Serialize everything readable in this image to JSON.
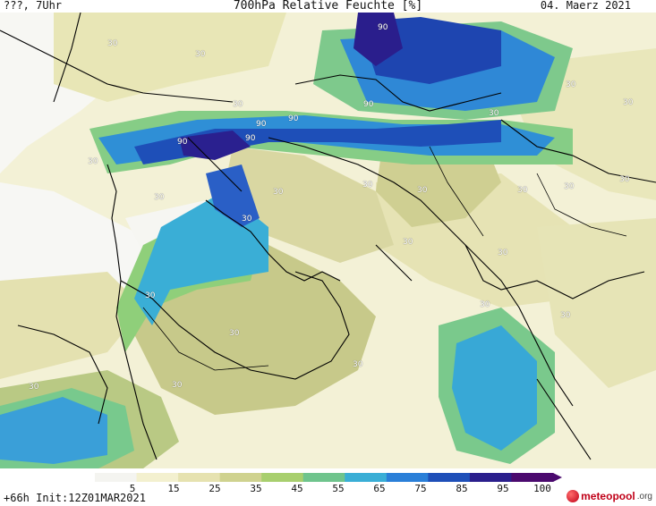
{
  "header": {
    "left": "???, 7Uhr",
    "title": "700hPa Relative Feuchte [%]",
    "date": "04. Maerz 2021"
  },
  "colorbar": {
    "ticks": [
      "5",
      "15",
      "25",
      "35",
      "45",
      "55",
      "65",
      "75",
      "85",
      "95",
      "100"
    ],
    "colors": [
      "#f4f4f0",
      "#f3f0cf",
      "#e6e2b0",
      "#cfd28f",
      "#a8cf6e",
      "#6fc48d",
      "#3aaed6",
      "#2a7fd8",
      "#1e4fb8",
      "#2a1e8c",
      "#4b0a6e"
    ]
  },
  "contour_labels": [
    {
      "text": "90"
    },
    {
      "text": "90"
    },
    {
      "text": "90"
    },
    {
      "text": "90"
    },
    {
      "text": "90"
    },
    {
      "text": "90"
    },
    {
      "text": "30"
    },
    {
      "text": "30"
    },
    {
      "text": "30"
    },
    {
      "text": "30"
    },
    {
      "text": "30"
    },
    {
      "text": "30"
    },
    {
      "text": "30"
    },
    {
      "text": "30"
    },
    {
      "text": "30"
    },
    {
      "text": "30"
    },
    {
      "text": "30"
    },
    {
      "text": "30"
    },
    {
      "text": "30"
    },
    {
      "text": "30"
    },
    {
      "text": "30"
    },
    {
      "text": "30"
    },
    {
      "text": "30"
    },
    {
      "text": "30"
    },
    {
      "text": "30"
    },
    {
      "text": "30"
    },
    {
      "text": "30"
    },
    {
      "text": "30"
    },
    {
      "text": "30"
    },
    {
      "text": "30"
    }
  ],
  "footer": {
    "run": "+66h Init:12Z01MAR2021",
    "logo_brand": "meteopool",
    "logo_tld": ".org"
  }
}
